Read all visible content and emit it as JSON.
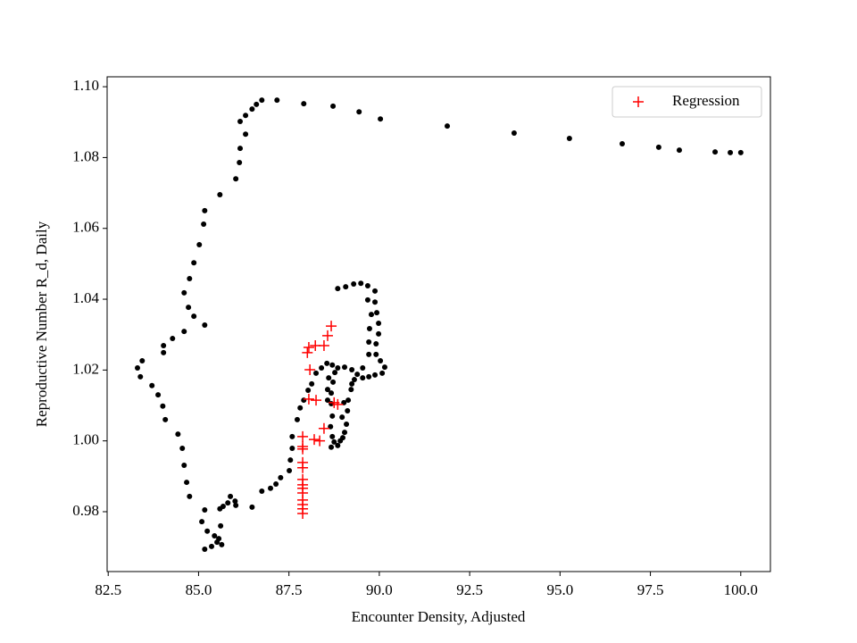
{
  "chart_data": {
    "type": "scatter",
    "x_label": "Encounter Density, Adjusted",
    "y_label": "Reproductive Number R_d, Daily",
    "xlim": [
      82.47,
      100.82
    ],
    "ylim": [
      0.9631,
      1.1028
    ],
    "xticks": [
      {
        "value": 82.5,
        "label": "82.5"
      },
      {
        "value": 85,
        "label": "85.0"
      },
      {
        "value": 87.5,
        "label": "87.5"
      },
      {
        "value": 90,
        "label": "90.0"
      },
      {
        "value": 92.5,
        "label": "92.5"
      },
      {
        "value": 95,
        "label": "95.0"
      },
      {
        "value": 97.5,
        "label": "97.5"
      },
      {
        "value": 100,
        "label": "100.0"
      }
    ],
    "yticks": [
      0.98,
      {
        "value": 1,
        "label": "1.00"
      },
      1.02,
      1.04,
      1.06,
      1.08,
      {
        "value": 1.1,
        "label": "1.10"
      }
    ],
    "legend": "upper right",
    "series": [
      {
        "color": "#000000",
        "marker": "circle",
        "x": [
          100.0,
          99.71,
          99.29,
          98.3,
          97.73,
          96.72,
          95.26,
          93.73,
          91.88,
          90.03,
          89.44,
          88.72,
          87.91,
          87.17,
          86.75,
          86.6,
          86.48,
          86.3,
          86.15,
          86.3,
          86.15,
          86.13,
          86.03,
          85.59,
          85.17,
          85.14,
          85.02,
          84.87,
          84.75,
          84.6,
          84.72,
          84.87,
          85.17,
          84.6,
          84.28,
          84.03,
          84.03,
          83.44,
          83.31,
          83.39,
          83.71,
          83.88,
          84.01,
          84.08,
          84.43,
          84.55,
          84.6,
          84.67,
          84.75,
          85.09,
          85.17,
          85.24,
          85.44,
          85.51,
          85.64,
          85.36,
          85.17,
          85.56,
          85.61,
          85.59,
          85.68,
          85.81,
          85.88,
          86.01,
          86.03,
          86.48,
          86.75,
          86.99,
          87.14,
          87.27,
          87.51,
          87.54,
          87.59,
          87.59,
          87.73,
          87.81,
          87.91,
          88.03,
          88.13,
          88.25,
          88.4,
          88.55,
          88.7,
          88.85,
          89.04,
          89.24,
          89.39,
          89.54,
          89.71,
          89.88,
          90.08,
          90.15,
          90.03,
          89.91,
          89.91,
          89.98,
          89.98,
          89.93,
          89.88,
          89.88,
          89.68,
          89.49,
          89.29,
          89.07,
          88.85,
          89.68,
          89.78,
          89.73,
          89.71,
          89.71,
          89.54,
          89.31,
          89.22,
          89.14,
          89.12,
          89.09,
          88.99,
          88.85,
          88.67,
          88.7,
          88.65,
          88.7,
          88.67,
          88.67,
          88.72,
          88.77,
          88.6,
          88.57,
          88.57,
          88.75,
          88.92,
          89.04,
          88.97,
          89.02,
          89.24
        ],
        "values": [
          1.0814,
          1.0814,
          1.0816,
          1.0821,
          1.0829,
          1.0839,
          1.0854,
          1.0869,
          1.0889,
          1.0909,
          1.0929,
          1.0945,
          1.0952,
          1.0962,
          1.0962,
          1.095,
          1.0937,
          1.0919,
          1.0902,
          1.0866,
          1.0826,
          1.0786,
          1.074,
          1.0695,
          1.065,
          1.0612,
          1.0554,
          1.0503,
          1.0458,
          1.0418,
          1.0377,
          1.0352,
          1.0327,
          1.0309,
          1.0289,
          1.0269,
          1.0249,
          1.0226,
          1.0206,
          1.0181,
          1.0156,
          1.013,
          1.0098,
          1.006,
          1.0019,
          0.9979,
          0.9931,
          0.9883,
          0.9843,
          0.9772,
          0.9805,
          0.9745,
          0.9732,
          0.9714,
          0.9707,
          0.9702,
          0.9694,
          0.9724,
          0.976,
          0.9808,
          0.9815,
          0.9825,
          0.9843,
          0.983,
          0.9818,
          0.9813,
          0.9858,
          0.9866,
          0.9878,
          0.9896,
          0.9916,
          0.9946,
          0.9979,
          1.0012,
          1.006,
          1.0093,
          1.0115,
          1.0143,
          1.0161,
          1.0191,
          1.0206,
          1.0219,
          1.0214,
          1.0206,
          1.0208,
          1.0201,
          1.0188,
          1.0178,
          1.0181,
          1.0186,
          1.0191,
          1.0208,
          1.0226,
          1.0244,
          1.0274,
          1.0302,
          1.0332,
          1.0362,
          1.0392,
          1.0423,
          1.0438,
          1.0445,
          1.0443,
          1.0435,
          1.043,
          1.0398,
          1.0357,
          1.0317,
          1.0279,
          1.0244,
          1.0206,
          1.0173,
          1.0145,
          1.0115,
          1.0085,
          1.0047,
          1.0009,
          0.9987,
          0.9982,
          1.0012,
          1.004,
          1.007,
          1.0105,
          1.0135,
          1.0166,
          1.0193,
          1.0178,
          1.0145,
          1.0115,
          0.9997,
          1.0,
          1.0024,
          1.0067,
          1.0108,
          1.0161
        ]
      },
      {
        "name": "Regression",
        "color": "#ff0000",
        "marker": "plus",
        "x": [
          88.67,
          88.57,
          88.05,
          88.23,
          88.47,
          88.01,
          88.08,
          88.25,
          88.05,
          88.75,
          88.85,
          88.47,
          88.2,
          88.35,
          87.88,
          87.88,
          87.88,
          87.88,
          87.88,
          87.88,
          87.88,
          87.88,
          87.88,
          87.88,
          87.88,
          87.88,
          87.88
        ],
        "values": [
          1.0324,
          1.0297,
          1.0264,
          1.0269,
          1.0269,
          1.0249,
          1.0201,
          1.0115,
          1.0118,
          1.0108,
          1.0103,
          1.0035,
          1.0004,
          1.0,
          1.0012,
          0.9984,
          0.9977,
          0.9939,
          0.9924,
          0.9891,
          0.9876,
          0.9866,
          0.9853,
          0.9833,
          0.982,
          0.9808,
          0.9795
        ]
      }
    ]
  }
}
